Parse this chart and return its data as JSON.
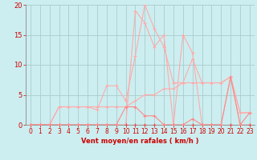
{
  "bg_color": "#cceef0",
  "grid_color": "#aacccc",
  "line_color_dark": "#ee4444",
  "line_color_mid": "#ff8888",
  "line_color_light": "#ffaaaa",
  "xlabel": "Vent moyen/en rafales ( km/h )",
  "xlabel_color": "#cc0000",
  "tick_color": "#cc0000",
  "xlim": [
    -0.5,
    23.5
  ],
  "ylim": [
    0,
    20
  ],
  "yticks": [
    0,
    5,
    10,
    15,
    20
  ],
  "xticks": [
    0,
    1,
    2,
    3,
    4,
    5,
    6,
    7,
    8,
    9,
    10,
    11,
    12,
    13,
    14,
    15,
    16,
    17,
    18,
    19,
    20,
    21,
    22,
    23
  ],
  "x_all": [
    0,
    1,
    2,
    3,
    4,
    5,
    6,
    7,
    8,
    9,
    10,
    11,
    12,
    13,
    14,
    15,
    16,
    17,
    18,
    19,
    20,
    21,
    22,
    23
  ],
  "series_rafales": [
    0,
    0,
    0,
    0,
    0,
    0,
    0,
    0,
    0,
    0,
    0,
    19,
    17,
    13,
    15,
    0,
    15,
    12,
    0,
    0,
    0,
    8,
    0,
    0
  ],
  "series_moyen": [
    0,
    0,
    0,
    3,
    3,
    3,
    3,
    2.5,
    6.5,
    6.5,
    4,
    11.5,
    20,
    16,
    13,
    7,
    7,
    11,
    7,
    7,
    7,
    8,
    2,
    2
  ],
  "series_trend": [
    0,
    0,
    0,
    3,
    3,
    3,
    3,
    3,
    3,
    3,
    3,
    4,
    5,
    5,
    6,
    6,
    7,
    7,
    7,
    7,
    7,
    8,
    2,
    2
  ],
  "series_moyen2": [
    0,
    0,
    0,
    0,
    0,
    0,
    0,
    0,
    0,
    0,
    3,
    3,
    1.5,
    1.5,
    0,
    0,
    0,
    1,
    0,
    0,
    0,
    8,
    0,
    2
  ],
  "series_zero": [
    0,
    0,
    0,
    0,
    0,
    0,
    0,
    0,
    0,
    0,
    0,
    0,
    0,
    0,
    0,
    0,
    0,
    0,
    0,
    0,
    0,
    0,
    0,
    0
  ]
}
